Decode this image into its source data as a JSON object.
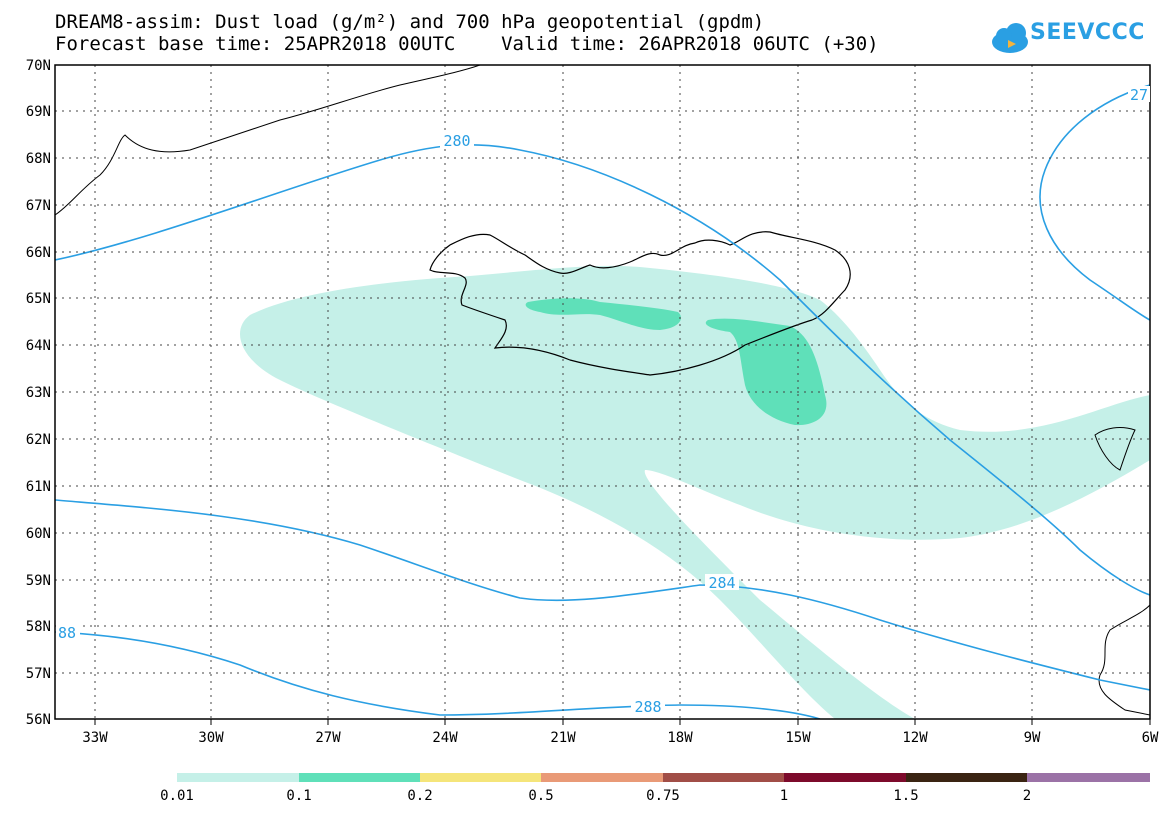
{
  "header": {
    "title_line1": "DREAM8-assim: Dust load (g/m²) and 700 hPa geopotential (gpdm)",
    "title_line2": "Forecast base time: 25APR2018 00UTC    Valid time: 26APR2018 06UTC (+30)"
  },
  "logo": {
    "text": "SEEVCCC",
    "icon": "cloud-icon",
    "color": "#2a9fe3"
  },
  "map": {
    "lat_labels": [
      "70N",
      "69N",
      "68N",
      "67N",
      "66N",
      "65N",
      "64N",
      "63N",
      "62N",
      "61N",
      "60N",
      "59N",
      "58N",
      "57N",
      "56N"
    ],
    "lon_labels": [
      "33W",
      "30W",
      "27W",
      "24W",
      "21W",
      "18W",
      "15W",
      "12W",
      "9W",
      "6W"
    ],
    "contour_labels": [
      "280",
      "284",
      "288",
      "88",
      "27"
    ],
    "contour_color": "#2a9fe3",
    "dust_colors": {
      "light": "#c5f0e8",
      "medium": "#5fe0b9"
    }
  },
  "legend": {
    "labels": [
      "0.01",
      "0.1",
      "0.2",
      "0.5",
      "0.75",
      "1",
      "1.5",
      "2"
    ],
    "colors": [
      "#c5f0e8",
      "#5fe0b9",
      "#f5e57a",
      "#e99a77",
      "#a14e47",
      "#7d0a2b",
      "#3a2412",
      "#9b72a6"
    ]
  }
}
